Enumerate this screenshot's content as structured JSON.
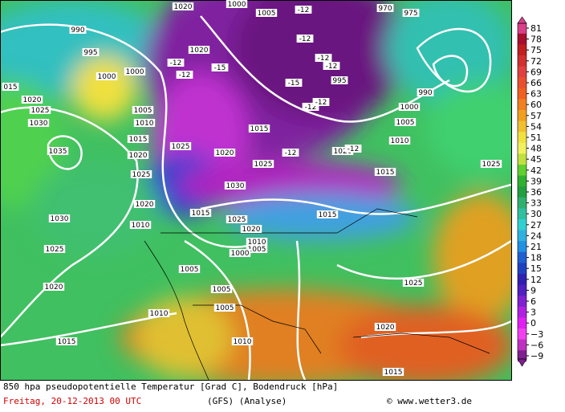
{
  "isobar_labels": [
    "990",
    "995",
    "1000",
    "1000",
    "1005",
    "1010",
    "1015",
    "1020",
    "1025",
    "1020",
    "1010",
    "1030",
    "1035",
    "1030",
    "1025",
    "1020",
    "1015",
    "1020",
    "1020",
    "1025",
    "1020",
    "1025",
    "1030",
    "1015",
    "1025",
    "1020",
    "1010",
    "1005",
    "1000",
    "1005",
    "1005",
    "1005",
    "1010",
    "1010",
    "1015",
    "1020",
    "1015",
    "1010",
    "1005",
    "1000",
    "990",
    "975",
    "970",
    "995",
    "1005",
    "1000",
    "1015",
    "1025",
    "1025",
    "1020",
    "1015",
    "015",
    "1020",
    "1025"
  ],
  "temperature_labels": [
    "-12",
    "-12",
    "-12",
    "-15",
    "-12",
    "-12",
    "-12",
    "-12",
    "-12",
    "-12",
    "-15",
    "-12"
  ],
  "colorbar": {
    "ticks": [
      81,
      78,
      75,
      72,
      69,
      66,
      63,
      60,
      57,
      54,
      51,
      48,
      45,
      42,
      39,
      36,
      33,
      30,
      27,
      24,
      21,
      18,
      15,
      12,
      9,
      6,
      3,
      0,
      {
        "value": -3,
        "label": "−3"
      },
      {
        "value": -6,
        "label": "−6"
      },
      {
        "value": -9,
        "label": "−9"
      }
    ],
    "colors": [
      "#d8408a",
      "#a81030",
      "#c02020",
      "#d03030",
      "#e04040",
      "#e85030",
      "#f06020",
      "#f08020",
      "#f0a020",
      "#f0c030",
      "#f0e040",
      "#f0f060",
      "#c0e040",
      "#60d030",
      "#30b030",
      "#20a040",
      "#30b070",
      "#30c0a0",
      "#30d0d0",
      "#30b0e0",
      "#2090e0",
      "#2060d0",
      "#2040c0",
      "#3020b0",
      "#5020c0",
      "#8020d0",
      "#b020e0",
      "#e020f0",
      "#f040f0",
      "#c030c0",
      "#802090"
    ]
  },
  "footer": {
    "description": "850 hpa pseudopotentielle Temperatur [Grad C], Bodendruck [hPa]",
    "date": "Freitag, 20-12-2013  00 UTC",
    "model": "(GFS)  (Analyse)",
    "source": "© www.wetter3.de"
  }
}
